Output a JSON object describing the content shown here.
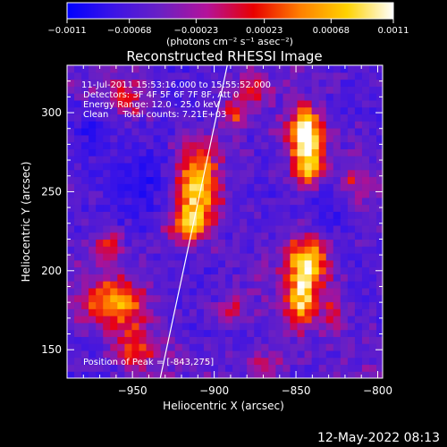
{
  "chart_data": {
    "type": "heatmap",
    "title": "Reconstructed RHESSI Image",
    "xlabel": "Heliocentric X (arcsec)",
    "ylabel": "Heliocentric Y (arcsec)",
    "xlim": [
      -990,
      -797
    ],
    "ylim": [
      132,
      330
    ],
    "x_ticks": [
      -950,
      -900,
      -850,
      -800
    ],
    "y_ticks": [
      150,
      200,
      250,
      300
    ],
    "x_tick_labels": [
      "−950",
      "−900",
      "−850",
      "−800"
    ],
    "y_tick_labels": [
      "150",
      "200",
      "250",
      "300"
    ],
    "colorbar": {
      "range": [
        -0.0011,
        0.0011
      ],
      "ticks": [
        -0.0011,
        -0.00068,
        -0.00023,
        0.00023,
        0.00068,
        0.0011
      ],
      "tick_labels": [
        "−0.0011",
        "−0.00068",
        "−0.00023",
        "0.00023",
        "0.00068",
        "0.0011"
      ],
      "units_label": "(photons cm⁻² s⁻¹ asec⁻²)",
      "colors": [
        "#0000ff",
        "#3c14e6",
        "#6a20c4",
        "#b4129a",
        "#e80000",
        "#ff7f00",
        "#ffd200",
        "#ffffff"
      ]
    },
    "annotations": [
      "11-Jul-2011 15:53:16.000 to 15:55:52.000",
      "Detectors: 3F 4F 5F 6F 7F 8F, Att 0",
      "Energy Range: 12.0 - 25.0 keV",
      "Clean     Total counts: 7.21E+03"
    ],
    "peak_label": "Position of Peak = [-843,275]",
    "peak": [
      -843,
      275
    ],
    "limb_line": [
      [
        -933,
        132
      ],
      [
        -892,
        330
      ]
    ],
    "sources": [
      {
        "x": -843,
        "y": 275,
        "sx": 7,
        "sy": 16,
        "amp": 1.0
      },
      {
        "x": -845,
        "y": 290,
        "sx": 6,
        "sy": 8,
        "amp": 0.55
      },
      {
        "x": -843,
        "y": 205,
        "sx": 9,
        "sy": 13,
        "amp": 0.85
      },
      {
        "x": -846,
        "y": 180,
        "sx": 6,
        "sy": 12,
        "amp": 0.7
      },
      {
        "x": -827,
        "y": 175,
        "sx": 5,
        "sy": 9,
        "amp": 0.45
      },
      {
        "x": -910,
        "y": 255,
        "sx": 10,
        "sy": 16,
        "amp": 0.8
      },
      {
        "x": -916,
        "y": 230,
        "sx": 8,
        "sy": 8,
        "amp": 0.7
      },
      {
        "x": -960,
        "y": 180,
        "sx": 14,
        "sy": 10,
        "amp": 0.7
      },
      {
        "x": -948,
        "y": 150,
        "sx": 9,
        "sy": 10,
        "amp": 0.55
      },
      {
        "x": -965,
        "y": 215,
        "sx": 6,
        "sy": 7,
        "amp": 0.45
      },
      {
        "x": -888,
        "y": 300,
        "sx": 6,
        "sy": 8,
        "amp": 0.45
      },
      {
        "x": -878,
        "y": 315,
        "sx": 6,
        "sy": 6,
        "amp": 0.35
      },
      {
        "x": -955,
        "y": 310,
        "sx": 10,
        "sy": 9,
        "amp": 0.35
      },
      {
        "x": -892,
        "y": 175,
        "sx": 6,
        "sy": 6,
        "amp": 0.35
      },
      {
        "x": -815,
        "y": 255,
        "sx": 5,
        "sy": 8,
        "amp": 0.3
      },
      {
        "x": -870,
        "y": 140,
        "sx": 8,
        "sy": 6,
        "amp": 0.4
      }
    ]
  },
  "footer": {
    "date": "12-May-2022 08:13"
  }
}
